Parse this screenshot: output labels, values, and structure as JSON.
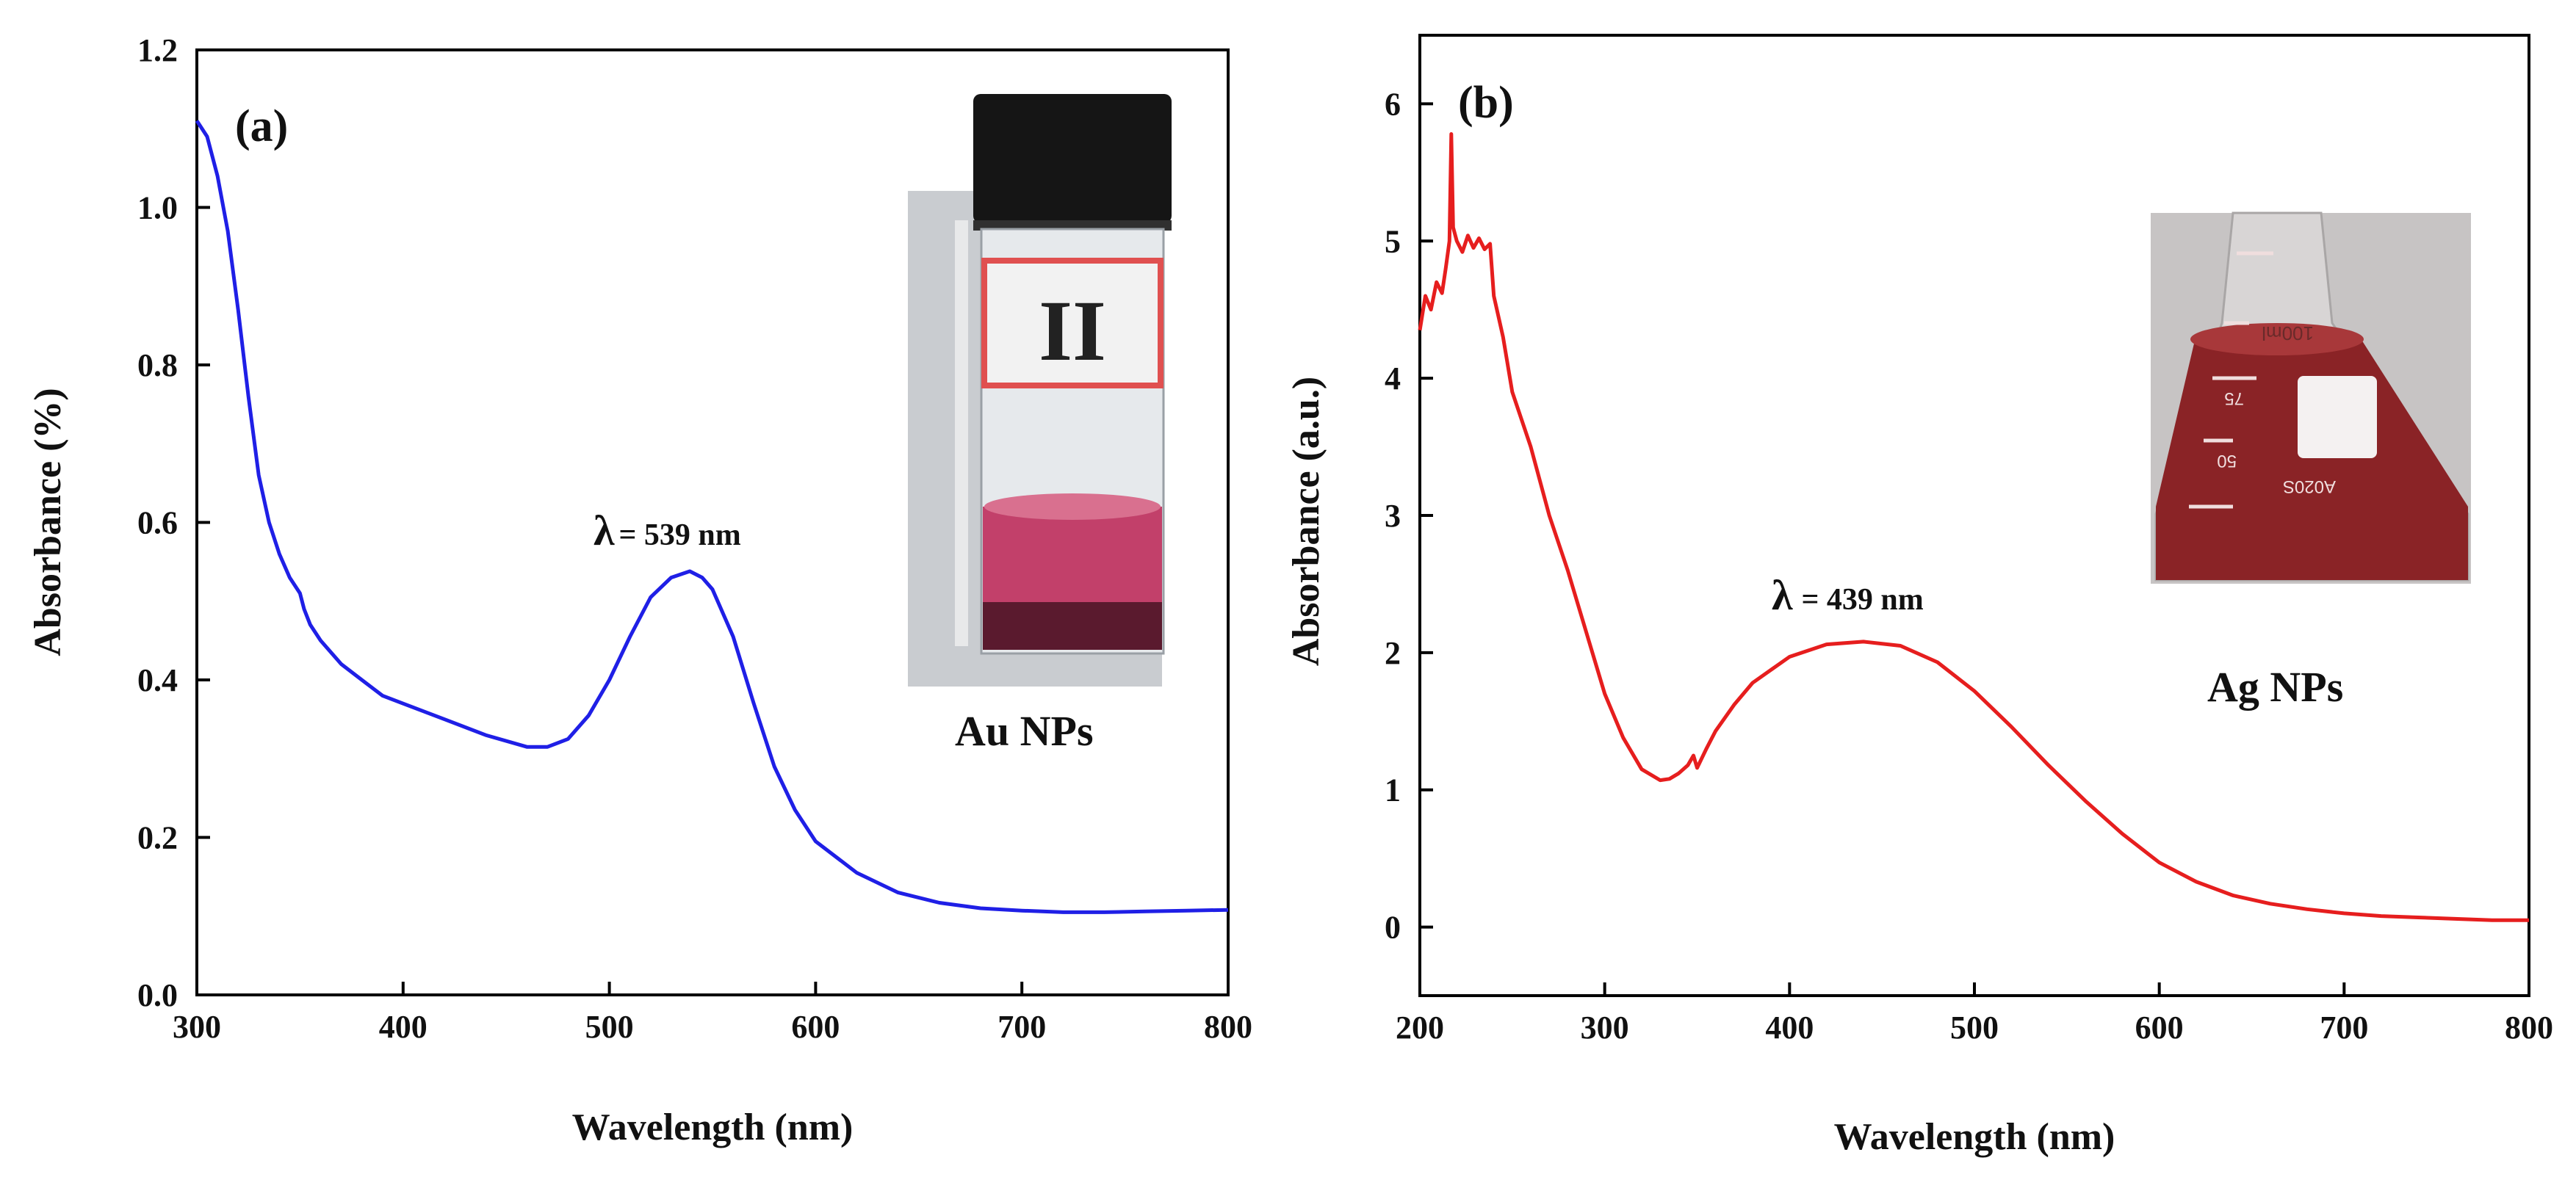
{
  "chart_data": [
    {
      "type": "line",
      "panel_label": "(a)",
      "xlabel": "Wavelength (nm)",
      "ylabel": "Absorbance (%)",
      "xlim": [
        300,
        800
      ],
      "ylim": [
        0.0,
        1.2
      ],
      "xticks": [
        300,
        400,
        500,
        600,
        700,
        800
      ],
      "yticks": [
        0.0,
        0.2,
        0.4,
        0.6,
        0.8,
        1.0,
        1.2
      ],
      "ytick_labels": [
        "0.0",
        "0.2",
        "0.4",
        "0.6",
        "0.8",
        "1.0",
        "1.2"
      ],
      "line_color": "#1f1fe6",
      "series": [
        {
          "name": "Au NPs",
          "x": [
            300,
            305,
            310,
            315,
            320,
            325,
            330,
            335,
            340,
            345,
            350,
            352,
            355,
            360,
            370,
            380,
            390,
            400,
            420,
            440,
            460,
            470,
            480,
            490,
            500,
            510,
            520,
            530,
            539,
            545,
            550,
            560,
            570,
            580,
            590,
            600,
            620,
            640,
            660,
            680,
            700,
            720,
            740,
            760,
            780,
            800
          ],
          "y": [
            1.11,
            1.09,
            1.04,
            0.97,
            0.87,
            0.76,
            0.66,
            0.6,
            0.56,
            0.53,
            0.51,
            0.49,
            0.47,
            0.45,
            0.42,
            0.4,
            0.38,
            0.37,
            0.35,
            0.33,
            0.315,
            0.315,
            0.325,
            0.355,
            0.4,
            0.455,
            0.505,
            0.53,
            0.538,
            0.53,
            0.515,
            0.455,
            0.37,
            0.29,
            0.235,
            0.195,
            0.155,
            0.13,
            0.117,
            0.11,
            0.107,
            0.105,
            0.105,
            0.106,
            0.107,
            0.108
          ]
        }
      ],
      "annotation": {
        "symbol": "λ",
        "text": "= 539 nm",
        "x": 539
      },
      "inset_label": "Au NPs",
      "inset_vial_label": "II",
      "inset_colors": {
        "liquid": "#c2406a",
        "cap": "#111111",
        "band": "#e05050"
      }
    },
    {
      "type": "line",
      "panel_label": "(b)",
      "xlabel": "Wavelength (nm)",
      "ylabel": "Absorbance (a.u.)",
      "xlim": [
        200,
        800
      ],
      "ylim": [
        -0.5,
        6.5
      ],
      "xticks": [
        200,
        300,
        400,
        500,
        600,
        700,
        800
      ],
      "yticks": [
        0,
        1,
        2,
        3,
        4,
        5,
        6
      ],
      "ytick_labels": [
        "0",
        "1",
        "2",
        "3",
        "4",
        "5",
        "6"
      ],
      "line_color": "#e61e1e",
      "series": [
        {
          "name": "Ag NPs",
          "x": [
            200,
            203,
            206,
            209,
            212,
            214,
            216,
            217,
            218,
            220,
            223,
            226,
            229,
            232,
            235,
            238,
            240,
            245,
            250,
            260,
            270,
            280,
            290,
            300,
            310,
            320,
            330,
            335,
            340,
            345,
            348,
            350,
            355,
            360,
            370,
            380,
            400,
            420,
            440,
            460,
            480,
            500,
            520,
            540,
            560,
            580,
            600,
            620,
            640,
            660,
            680,
            700,
            720,
            740,
            760,
            780,
            800
          ],
          "y": [
            4.35,
            4.6,
            4.5,
            4.7,
            4.62,
            4.8,
            5.0,
            5.78,
            5.1,
            5.0,
            4.92,
            5.04,
            4.95,
            5.02,
            4.94,
            4.98,
            4.6,
            4.3,
            3.9,
            3.5,
            3.0,
            2.6,
            2.15,
            1.7,
            1.38,
            1.15,
            1.07,
            1.08,
            1.12,
            1.18,
            1.25,
            1.16,
            1.3,
            1.43,
            1.62,
            1.78,
            1.97,
            2.06,
            2.08,
            2.05,
            1.93,
            1.72,
            1.46,
            1.18,
            0.92,
            0.68,
            0.47,
            0.33,
            0.23,
            0.17,
            0.13,
            0.1,
            0.08,
            0.07,
            0.06,
            0.05,
            0.05
          ]
        }
      ],
      "annotation": {
        "symbol": "λ",
        "text": "= 439 nm",
        "x": 439
      },
      "inset_label": "Ag NPs",
      "inset_flask_marks": [
        "100ml",
        "75",
        "50",
        "A020S"
      ],
      "inset_colors": {
        "liquid": "#8a2326",
        "glass": "#d8d5d5"
      }
    }
  ]
}
